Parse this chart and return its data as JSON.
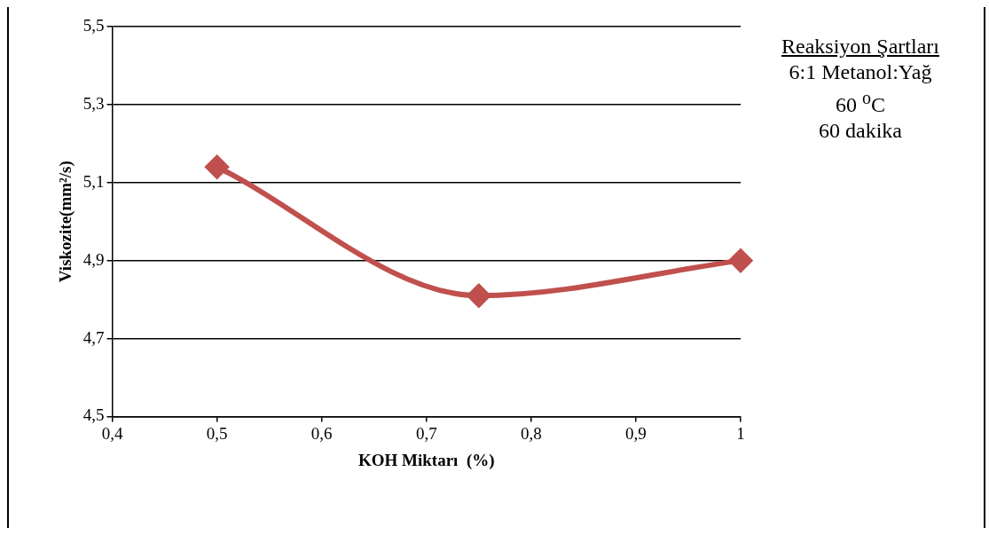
{
  "chart_data": {
    "type": "line",
    "xlabel": "KOH Miktarı  (%)",
    "ylabel": "Viskozite(mm²/s)",
    "x": [
      0.5,
      0.75,
      1
    ],
    "series": [
      {
        "color": "#c0504d",
        "values": [
          5.14,
          4.81,
          4.9
        ]
      }
    ],
    "xlim": [
      0.4,
      1
    ],
    "xticks": [
      {
        "value": 0.4,
        "label": "0,4"
      },
      {
        "value": 0.5,
        "label": "0,5"
      },
      {
        "value": 0.6,
        "label": "0,6"
      },
      {
        "value": 0.7,
        "label": "0,7"
      },
      {
        "value": 0.8,
        "label": "0,8"
      },
      {
        "value": 0.9,
        "label": "0,9"
      },
      1
    ],
    "ylim": [
      4.5,
      5.5
    ],
    "yticks": [
      {
        "value": 4.5,
        "label": "4,5"
      },
      {
        "value": 4.7,
        "label": "4,7"
      },
      {
        "value": 4.9,
        "label": "4,9"
      },
      {
        "value": 5.1,
        "label": "5,1"
      },
      {
        "value": 5.3,
        "label": "5,3"
      },
      {
        "value": 5.5,
        "label": "5,5"
      }
    ],
    "grid": "y",
    "legend": false,
    "marker": "diamond",
    "line_style": "solid",
    "annotations": [
      "Reaksiyon Şartları",
      "6:1 Metanol:Yağ",
      "60 $^{o}$C",
      "60 dakika"
    ]
  }
}
